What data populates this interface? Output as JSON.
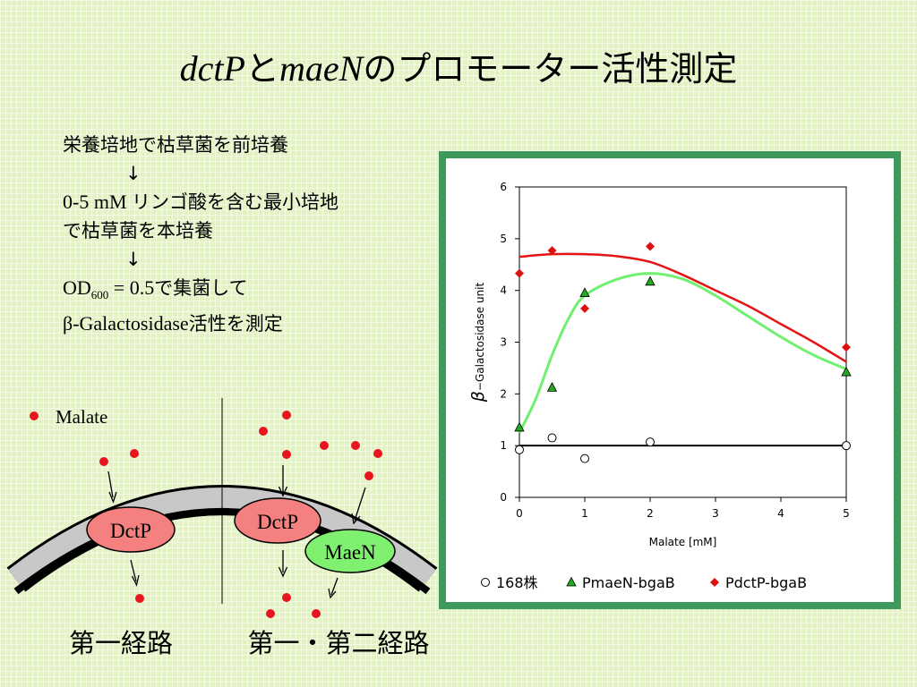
{
  "slide": {
    "title": {
      "gene1": "dctP",
      "joiner": "と",
      "gene2": "maeN",
      "rest": "のプロモーター活性測定"
    },
    "steps": {
      "line1": "栄養培地で枯草菌を前培養",
      "arrow": "↓",
      "line2_num": "0-5 mM ",
      "line2_text": "リンゴ酸を含む最小培地",
      "line3": "で枯草菌を本培養",
      "line4_od": "OD",
      "line4_sub": "600",
      "line4_eq": " = 0.5",
      "line4_text": "で集菌して",
      "line5_beta": "β-Galactosidase",
      "line5_text": "活性を測定"
    }
  },
  "diagram": {
    "malate_legend": "Malate",
    "dctp_left": "DctP",
    "dctp_right": "DctP",
    "maen": "MaeN",
    "caption_left": "第一経路",
    "caption_right": "第一・第二経路",
    "colors": {
      "malate": "#e8141e",
      "dctp": "#f48080",
      "maen": "#80f070",
      "membrane": "#c8c8c8"
    }
  },
  "chart_data": {
    "type": "scatter",
    "xlabel": "Malate [mM]",
    "ylabel_symbol": "β",
    "ylabel": "−Galactosidase unit",
    "xlim": [
      0,
      5
    ],
    "ylim": [
      0,
      6
    ],
    "xticks": [
      0,
      1,
      2,
      3,
      4,
      5
    ],
    "yticks": [
      0,
      1,
      2,
      3,
      4,
      5,
      6
    ],
    "series": [
      {
        "name": "168株",
        "marker": "circle",
        "color": "#000000",
        "points": [
          [
            0,
            0.92
          ],
          [
            0.5,
            1.15
          ],
          [
            1,
            0.75
          ],
          [
            2,
            1.07
          ],
          [
            5,
            1.0
          ]
        ],
        "trend": [
          [
            0,
            1.0
          ],
          [
            5,
            1.0
          ]
        ]
      },
      {
        "name": "PmaeN-bgaB",
        "marker": "triangle",
        "color": "#22aa22",
        "points": [
          [
            0,
            1.35
          ],
          [
            0.5,
            2.12
          ],
          [
            1,
            3.95
          ],
          [
            2,
            4.17
          ],
          [
            5,
            2.42
          ]
        ],
        "trend_color": "#70f070",
        "trend": [
          [
            0,
            1.25
          ],
          [
            0.25,
            1.9
          ],
          [
            0.5,
            2.75
          ],
          [
            0.75,
            3.45
          ],
          [
            1,
            3.9
          ],
          [
            1.5,
            4.22
          ],
          [
            2,
            4.33
          ],
          [
            2.5,
            4.22
          ],
          [
            3,
            3.9
          ],
          [
            3.5,
            3.5
          ],
          [
            4,
            3.1
          ],
          [
            4.5,
            2.75
          ],
          [
            5,
            2.48
          ]
        ],
        "line_width": 3
      },
      {
        "name": "PdctP-bgaB",
        "marker": "diamond",
        "color": "#dd1111",
        "points": [
          [
            0,
            4.33
          ],
          [
            0.5,
            4.77
          ],
          [
            1,
            3.65
          ],
          [
            2,
            4.85
          ],
          [
            5,
            2.9
          ]
        ],
        "trend_color": "#e41414",
        "trend": [
          [
            0,
            4.65
          ],
          [
            0.5,
            4.7
          ],
          [
            1,
            4.7
          ],
          [
            1.5,
            4.66
          ],
          [
            2,
            4.55
          ],
          [
            2.5,
            4.3
          ],
          [
            3,
            4.0
          ],
          [
            3.5,
            3.7
          ],
          [
            4,
            3.35
          ],
          [
            4.5,
            3.0
          ],
          [
            5,
            2.62
          ]
        ],
        "line_width": 2.5
      }
    ],
    "legend_position": "bottom"
  }
}
